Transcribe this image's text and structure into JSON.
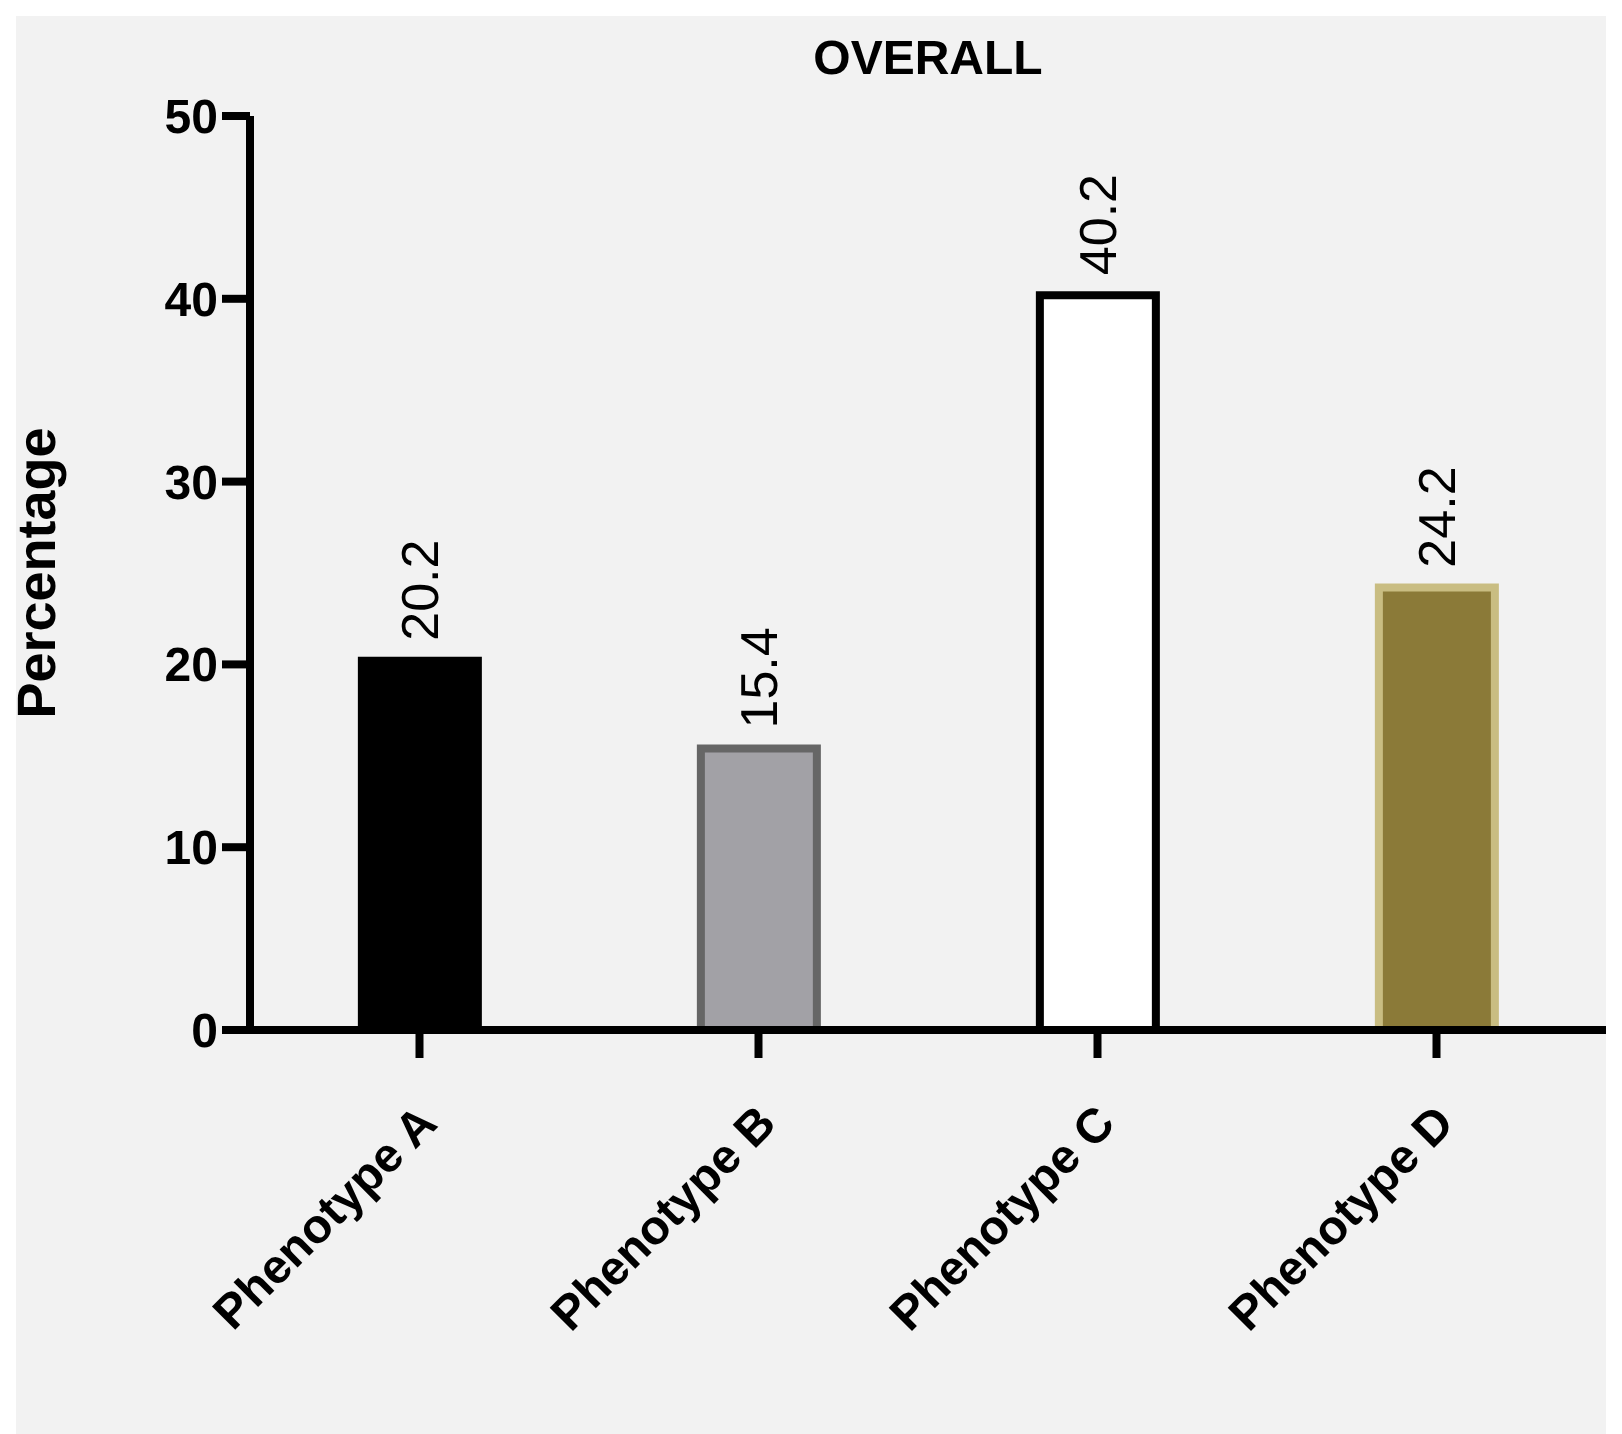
{
  "chart_data": {
    "type": "bar",
    "title": "OVERALL",
    "ylabel": "Percentage",
    "categories": [
      "Phenotype A",
      "Phenotype B",
      "Phenotype C",
      "Phenotype D"
    ],
    "values": [
      20.2,
      15.4,
      40.2,
      24.2
    ],
    "colors": [
      "#000000",
      "#a2a1a6",
      "#ffffff",
      "#8b7a38"
    ],
    "ylim": [
      0,
      50
    ],
    "yticks": [
      0,
      10,
      20,
      30,
      40,
      50
    ],
    "data_labels": true,
    "grid": false,
    "legend": false
  }
}
